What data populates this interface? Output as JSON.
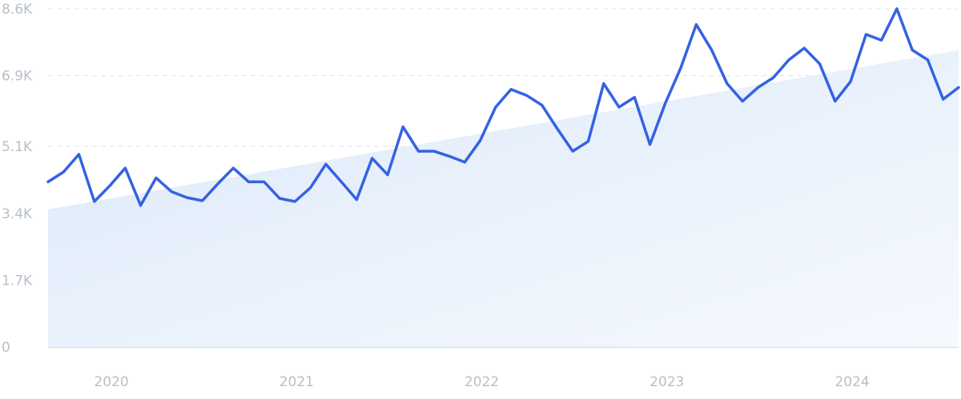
{
  "chart_data": {
    "type": "line",
    "title": "",
    "xlabel": "",
    "ylabel": "",
    "ylim": [
      0,
      8600
    ],
    "y_ticks": [
      {
        "value": 0,
        "label": "0"
      },
      {
        "value": 1700,
        "label": "1.7K"
      },
      {
        "value": 3400,
        "label": "3.4K"
      },
      {
        "value": 5100,
        "label": "5.1K"
      },
      {
        "value": 6900,
        "label": "6.9K"
      },
      {
        "value": 8600,
        "label": "8.6K"
      }
    ],
    "x_ticks": [
      {
        "value": "2020-01",
        "label": "2020"
      },
      {
        "value": "2021-01",
        "label": "2021"
      },
      {
        "value": "2022-01",
        "label": "2022"
      },
      {
        "value": "2023-01",
        "label": "2023"
      },
      {
        "value": "2024-01",
        "label": "2024"
      }
    ],
    "xlim": [
      "2019-09",
      "2024-08"
    ],
    "grid": true,
    "trend": {
      "start": {
        "x": "2019-09",
        "y": 3500
      },
      "end": {
        "x": "2024-08",
        "y": 7550
      }
    },
    "series": [
      {
        "color": "#3562e3",
        "x": [
          "2019-09",
          "2019-10",
          "2019-11",
          "2019-12",
          "2020-01",
          "2020-02",
          "2020-03",
          "2020-04",
          "2020-05",
          "2020-06",
          "2020-07",
          "2020-08",
          "2020-09",
          "2020-10",
          "2020-11",
          "2020-12",
          "2021-01",
          "2021-02",
          "2021-03",
          "2021-04",
          "2021-05",
          "2021-06",
          "2021-07",
          "2021-08",
          "2021-09",
          "2021-10",
          "2021-11",
          "2021-12",
          "2022-01",
          "2022-02",
          "2022-03",
          "2022-04",
          "2022-05",
          "2022-06",
          "2022-07",
          "2022-08",
          "2022-09",
          "2022-10",
          "2022-11",
          "2022-12",
          "2023-01",
          "2023-02",
          "2023-03",
          "2023-04",
          "2023-05",
          "2023-06",
          "2023-07",
          "2023-08",
          "2023-09",
          "2023-10",
          "2023-11",
          "2023-12",
          "2024-01",
          "2024-02",
          "2024-03",
          "2024-04",
          "2024-05",
          "2024-06",
          "2024-07",
          "2024-08"
        ],
        "values": [
          4200,
          4450,
          4900,
          3700,
          4100,
          4550,
          3600,
          4300,
          3950,
          3800,
          3720,
          4150,
          4550,
          4200,
          4200,
          3780,
          3700,
          4050,
          4650,
          4200,
          3750,
          4800,
          4380,
          5600,
          4980,
          4980,
          4850,
          4700,
          5250,
          6100,
          6550,
          6400,
          6150,
          5550,
          4980,
          5230,
          6700,
          6100,
          6350,
          5150,
          6200,
          7100,
          8200,
          7550,
          6700,
          6250,
          6600,
          6850,
          7300,
          7600,
          7200,
          6250,
          6750,
          7950,
          7800,
          8600,
          7550,
          7300,
          6300,
          6600
        ]
      }
    ]
  }
}
